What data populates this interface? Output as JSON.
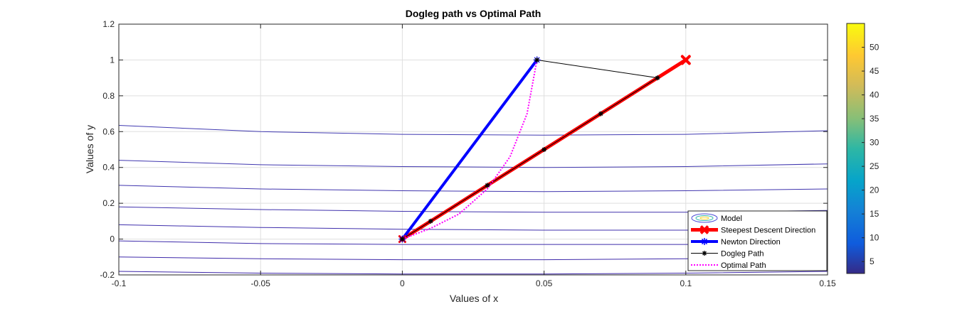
{
  "chart_data": {
    "type": "line",
    "title": "Dogleg path vs Optimal Path",
    "xlabel": "Values of x",
    "ylabel": "Values of y",
    "xlim": [
      -0.1,
      0.15
    ],
    "ylim": [
      -0.2,
      1.2
    ],
    "xticks": [
      -0.1,
      -0.05,
      0,
      0.05,
      0.1,
      0.15
    ],
    "xtick_labels": [
      "-0.1",
      "-0.05",
      "0",
      "0.05",
      "0.1",
      "0.15"
    ],
    "yticks": [
      -0.2,
      0,
      0.2,
      0.4,
      0.6,
      0.8,
      1,
      1.2
    ],
    "ytick_labels": [
      "-0.2",
      "0",
      "0.2",
      "0.4",
      "0.6",
      "0.8",
      "1",
      "1.2"
    ],
    "grid": true,
    "legend_position": "bottom-right",
    "colorbar": {
      "range": [
        2.5,
        55
      ],
      "ticks": [
        5,
        10,
        15,
        20,
        25,
        30,
        35,
        40,
        45,
        50
      ],
      "tick_labels": [
        "5",
        "10",
        "15",
        "20",
        "25",
        "30",
        "35",
        "40",
        "45",
        "50"
      ]
    },
    "contours": [
      {
        "level": 3,
        "x": [
          -0.1,
          -0.05,
          0,
          0.05,
          0.1,
          0.15
        ],
        "y": [
          -0.18,
          -0.19,
          -0.195,
          -0.195,
          -0.19,
          -0.18
        ]
      },
      {
        "level": 4,
        "x": [
          -0.1,
          -0.05,
          0,
          0.05,
          0.1,
          0.15
        ],
        "y": [
          -0.1,
          -0.11,
          -0.115,
          -0.115,
          -0.11,
          -0.1
        ]
      },
      {
        "level": 5,
        "x": [
          -0.1,
          -0.05,
          0,
          0.05,
          0.1,
          0.15
        ],
        "y": [
          -0.01,
          -0.025,
          -0.03,
          -0.03,
          -0.03,
          -0.025
        ]
      },
      {
        "level": 6,
        "x": [
          -0.1,
          -0.05,
          0,
          0.05,
          0.1,
          0.15
        ],
        "y": [
          0.08,
          0.065,
          0.055,
          0.05,
          0.05,
          0.055
        ]
      },
      {
        "level": 7,
        "x": [
          -0.1,
          -0.05,
          0,
          0.05,
          0.1,
          0.15
        ],
        "y": [
          0.18,
          0.165,
          0.155,
          0.15,
          0.15,
          0.16
        ]
      },
      {
        "level": 8,
        "x": [
          -0.1,
          -0.05,
          0,
          0.05,
          0.1,
          0.15
        ],
        "y": [
          0.3,
          0.28,
          0.27,
          0.265,
          0.27,
          0.28
        ]
      },
      {
        "level": 9,
        "x": [
          -0.1,
          -0.05,
          0,
          0.05,
          0.1,
          0.15
        ],
        "y": [
          0.44,
          0.415,
          0.405,
          0.4,
          0.405,
          0.42
        ]
      },
      {
        "level": 10,
        "x": [
          -0.1,
          -0.05,
          0,
          0.05,
          0.1,
          0.15
        ],
        "y": [
          0.635,
          0.6,
          0.585,
          0.58,
          0.585,
          0.605
        ]
      }
    ],
    "series": [
      {
        "name": "Model",
        "style": "contour",
        "color": "#4b4bd8"
      },
      {
        "name": "Steepest Descent Direction",
        "style": "thick-line-x",
        "color": "#ff0000",
        "x": [
          0,
          0.1
        ],
        "y": [
          0,
          1
        ]
      },
      {
        "name": "Newton Direction",
        "style": "thick-line-star",
        "color": "#0000ff",
        "x": [
          0,
          0.0475
        ],
        "y": [
          0,
          1
        ]
      },
      {
        "name": "Dogleg Path",
        "style": "line-star",
        "color": "#000000",
        "x": [
          0,
          0.01,
          0.03,
          0.05,
          0.07,
          0.09,
          0.0475
        ],
        "y": [
          0,
          0.1,
          0.3,
          0.5,
          0.7,
          0.9,
          1
        ]
      },
      {
        "name": "Optimal Path",
        "style": "dotted",
        "color": "#ff00ff",
        "x": [
          0,
          0.01,
          0.02,
          0.03,
          0.038,
          0.044,
          0.0475
        ],
        "y": [
          0,
          0.06,
          0.14,
          0.28,
          0.46,
          0.7,
          1
        ]
      }
    ]
  }
}
